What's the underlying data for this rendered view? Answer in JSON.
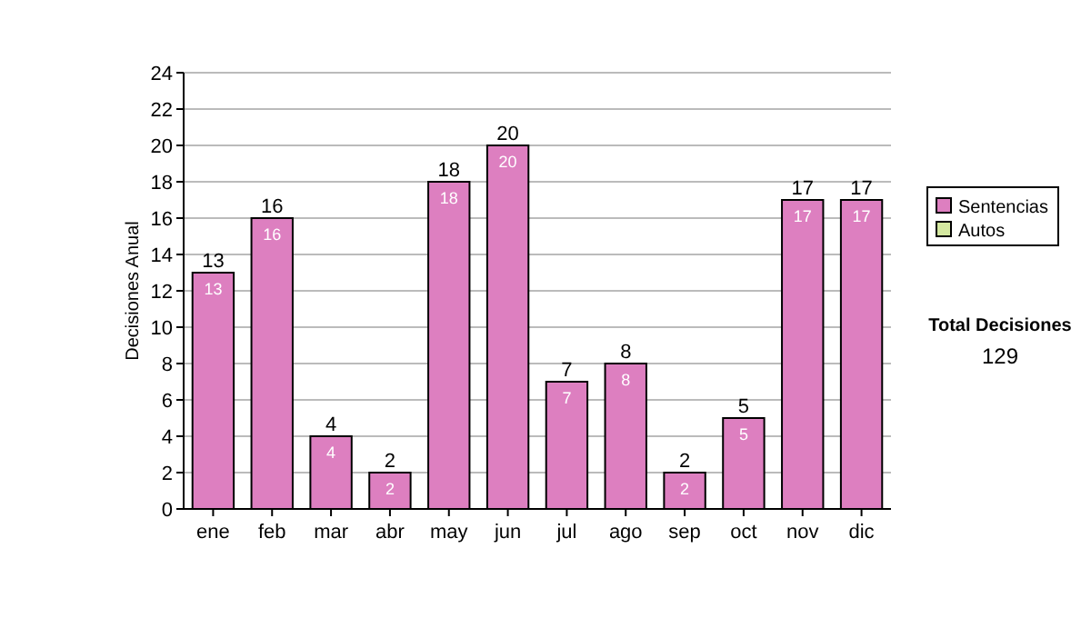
{
  "chart_data": {
    "type": "bar",
    "ylabel": "Decisiones Anual",
    "categories": [
      "ene",
      "feb",
      "mar",
      "abr",
      "may",
      "jun",
      "jul",
      "ago",
      "sep",
      "oct",
      "nov",
      "dic"
    ],
    "series": [
      {
        "name": "Sentencias",
        "color": "#dd7fc0",
        "values": [
          13,
          16,
          4,
          2,
          18,
          20,
          7,
          8,
          2,
          5,
          17,
          17
        ],
        "value_labels": [
          "13",
          "16",
          "4",
          "2",
          "18",
          "20",
          "7",
          "8",
          "2",
          "5",
          "17",
          "17"
        ]
      },
      {
        "name": "Autos",
        "color": "#d4e8a0",
        "values": [
          0,
          0,
          0,
          0,
          0,
          0,
          0,
          0,
          0,
          0,
          0,
          0
        ],
        "value_labels": [
          null,
          null,
          null,
          null,
          null,
          null,
          null,
          null,
          null,
          null,
          null,
          null
        ]
      }
    ],
    "stacked": true,
    "totals": [
      "13",
      "16",
      "4",
      "2",
      "18",
      "20",
      "7",
      "8",
      "2",
      "5",
      "17",
      "17"
    ],
    "ylim": [
      0,
      24
    ],
    "yticks": [
      0,
      2,
      4,
      6,
      8,
      10,
      12,
      14,
      16,
      18,
      20,
      22,
      24
    ],
    "grid": "y",
    "legend": "right",
    "annotations": [
      "Total Decisiones",
      "129"
    ]
  }
}
